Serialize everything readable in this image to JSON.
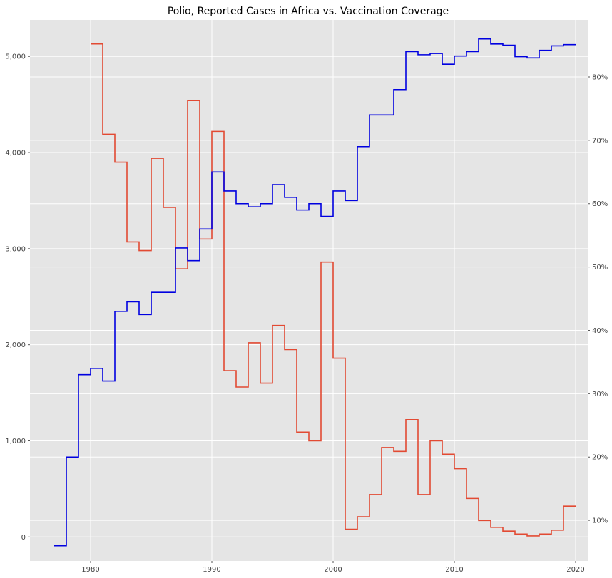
{
  "chart_data": {
    "type": "line",
    "step": "post",
    "title": "Polio, Reported Cases in Africa vs. Vaccination Coverage",
    "xlim": [
      1975,
      2021
    ],
    "x_ticks": [
      1980,
      1990,
      2000,
      2010,
      2020
    ],
    "grid": true,
    "axes": {
      "left": {
        "ylim": [
          -250,
          5380
        ],
        "ticks": [
          0,
          1000,
          2000,
          3000,
          4000,
          5000
        ],
        "tick_labels": [
          "0",
          "1,000",
          "2,000",
          "3,000",
          "4,000",
          "5,000"
        ]
      },
      "right": {
        "ylim": [
          3.6,
          89
        ],
        "ticks": [
          10,
          20,
          30,
          40,
          50,
          60,
          70,
          80
        ],
        "tick_labels": [
          "10%",
          "20%",
          "30%",
          "40%",
          "50%",
          "60%",
          "70%",
          "80%"
        ]
      }
    },
    "series": [
      {
        "axis": "left",
        "color": "#e24a33",
        "x": [
          1980,
          1981,
          1982,
          1983,
          1984,
          1985,
          1986,
          1987,
          1988,
          1989,
          1990,
          1991,
          1992,
          1993,
          1994,
          1995,
          1996,
          1997,
          1998,
          1999,
          2000,
          2001,
          2002,
          2003,
          2004,
          2005,
          2006,
          2007,
          2008,
          2009,
          2010,
          2011,
          2012,
          2013,
          2014,
          2015,
          2016,
          2017,
          2018,
          2019
        ],
        "values": [
          5130,
          4190,
          3900,
          3070,
          2980,
          3940,
          3430,
          2790,
          4540,
          3100,
          4220,
          1730,
          1560,
          2020,
          1600,
          2200,
          1950,
          1090,
          1000,
          2860,
          1860,
          80,
          210,
          440,
          930,
          890,
          1220,
          440,
          1000,
          860,
          710,
          400,
          170,
          100,
          60,
          30,
          10,
          30,
          70,
          320
        ]
      },
      {
        "axis": "right",
        "color": "#0000e0",
        "x": [
          1977,
          1978,
          1979,
          1980,
          1981,
          1982,
          1983,
          1984,
          1985,
          1986,
          1987,
          1988,
          1989,
          1990,
          1991,
          1992,
          1993,
          1994,
          1995,
          1996,
          1997,
          1998,
          1999,
          2000,
          2001,
          2002,
          2003,
          2004,
          2005,
          2006,
          2007,
          2008,
          2009,
          2010,
          2011,
          2012,
          2013,
          2014,
          2015,
          2016,
          2017,
          2018,
          2019
        ],
        "values": [
          6,
          20,
          33,
          34,
          32,
          43,
          44.5,
          42.5,
          46,
          46,
          53,
          51,
          56,
          65,
          62,
          60,
          59.5,
          60,
          63,
          61,
          59,
          60,
          58,
          62,
          60.5,
          69,
          74,
          74,
          78,
          84,
          83.5,
          83.7,
          82,
          83.3,
          84,
          86,
          85.2,
          85,
          83.2,
          83,
          84.2,
          84.9,
          85.1
        ]
      }
    ]
  }
}
